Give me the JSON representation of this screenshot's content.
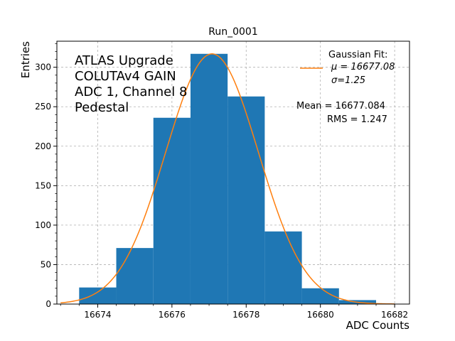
{
  "chart_data": {
    "type": "bar",
    "title": "Run_0001",
    "xlabel": "ADC Counts",
    "ylabel": "Entries",
    "xlim": [
      16672.9,
      16682.4
    ],
    "ylim": [
      0,
      333
    ],
    "xticks": [
      16674,
      16676,
      16678,
      16680,
      16682
    ],
    "yticks": [
      0,
      50,
      100,
      150,
      200,
      250,
      300
    ],
    "grid": true,
    "bar_color": "#1f77b4",
    "fit_color": "#ff7f0e",
    "bins": [
      {
        "x0": 16673.5,
        "x1": 16674.5,
        "value": 21
      },
      {
        "x0": 16674.5,
        "x1": 16675.5,
        "value": 71
      },
      {
        "x0": 16675.5,
        "x1": 16676.5,
        "value": 236
      },
      {
        "x0": 16676.5,
        "x1": 16677.5,
        "value": 317
      },
      {
        "x0": 16677.5,
        "x1": 16678.5,
        "value": 263
      },
      {
        "x0": 16678.5,
        "x1": 16679.5,
        "value": 92
      },
      {
        "x0": 16679.5,
        "x1": 16680.5,
        "value": 20
      },
      {
        "x0": 16680.5,
        "x1": 16681.5,
        "value": 5
      }
    ],
    "fit": {
      "mu": 16677.08,
      "sigma": 1.25,
      "peak": 317,
      "range": [
        16673.0,
        16682.0
      ]
    },
    "legend": {
      "placement": "top-right",
      "title": "Gaussian Fit:",
      "line1": "μ = 16677.08",
      "line2": "σ=1.25"
    },
    "stats": {
      "mean": "Mean = 16677.084",
      "rms": "RMS = 1.247"
    },
    "annotation": [
      "ATLAS Upgrade",
      "COLUTAv4 GAIN",
      "ADC 1, Channel 8",
      "Pedestal"
    ]
  }
}
